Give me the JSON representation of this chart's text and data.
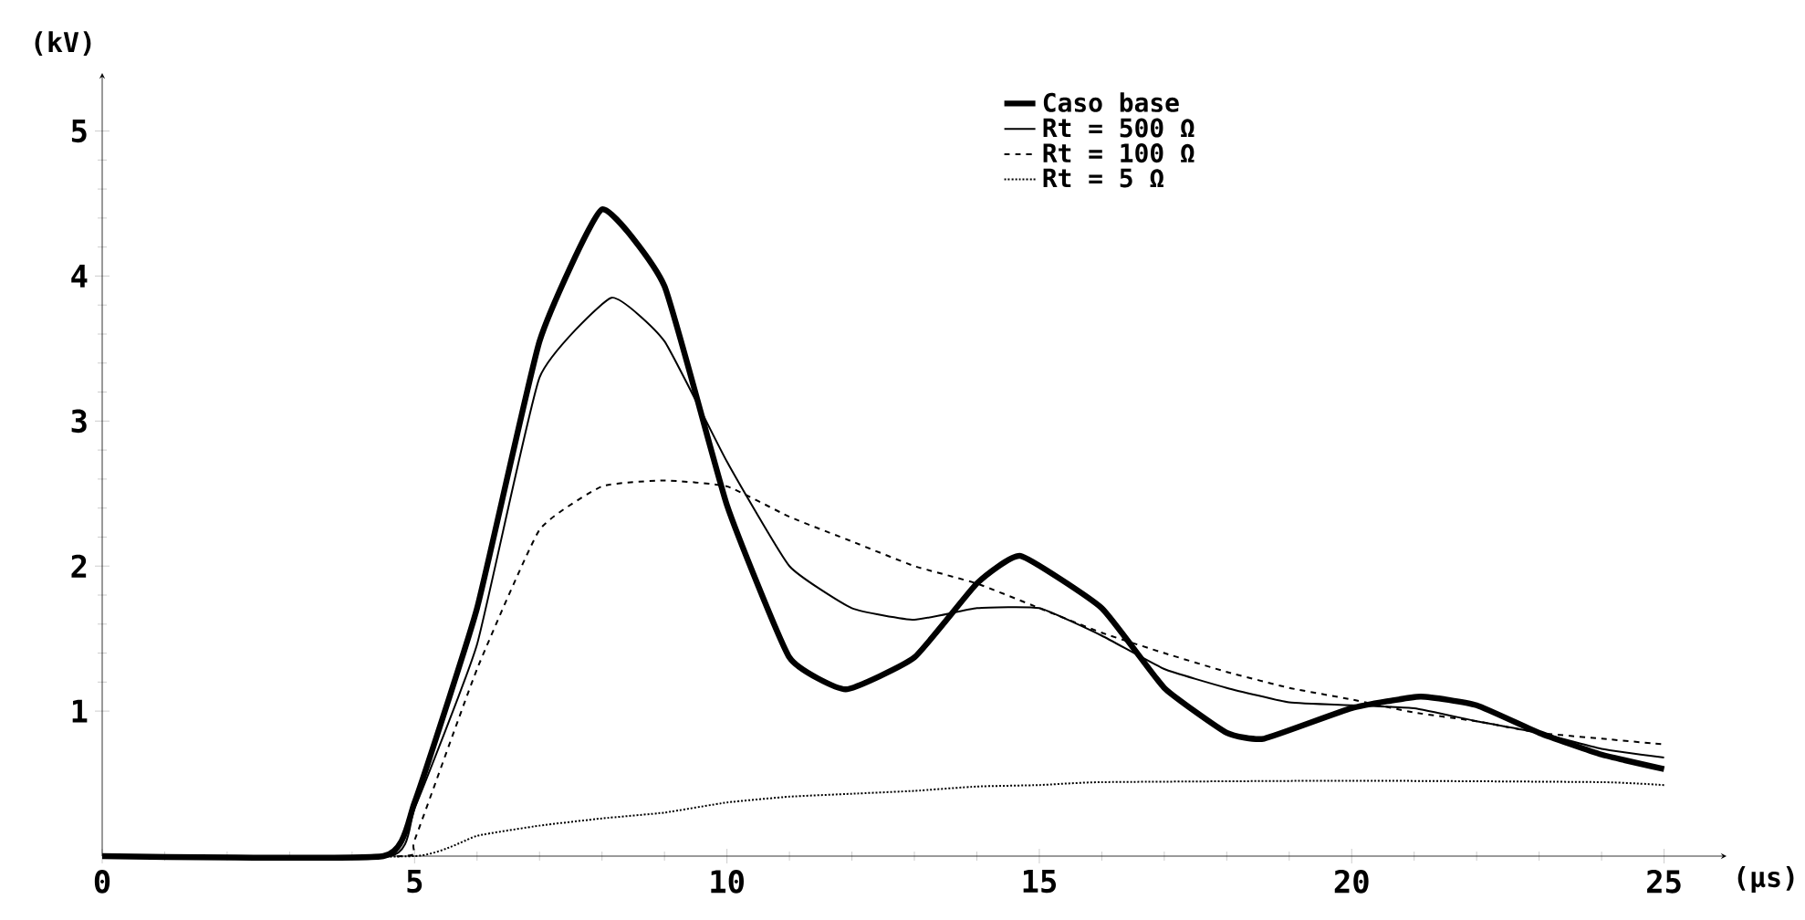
{
  "chart_data": {
    "type": "line",
    "xlabel": "(μs)",
    "ylabel": "(kV)",
    "xlim": [
      0,
      26
    ],
    "ylim": [
      0,
      5.4
    ],
    "xticks": [
      0,
      5,
      10,
      15,
      20,
      25
    ],
    "yticks": [
      1,
      2,
      3,
      4,
      5
    ],
    "legend": "top right",
    "series": [
      {
        "name": "Caso base",
        "color": "#000000",
        "line_style": "solid",
        "x": [
          0,
          4.5,
          5,
          6,
          7,
          8,
          9,
          10,
          11,
          11.9,
          13,
          14,
          14.7,
          16,
          17,
          18,
          18.6,
          20,
          21.1,
          22,
          23,
          24,
          25
        ],
        "values": [
          0,
          0,
          0.37,
          1.71,
          3.55,
          4.46,
          3.93,
          2.42,
          1.37,
          1.15,
          1.37,
          1.88,
          2.07,
          1.71,
          1.16,
          0.85,
          0.81,
          1.02,
          1.1,
          1.04,
          0.85,
          0.7,
          0.6
        ]
      },
      {
        "name": "Rt = 500 Ω",
        "color": "#000000",
        "line_style": "solid",
        "x": [
          0,
          4.6,
          5,
          6,
          7,
          8.15,
          9,
          10,
          11,
          12,
          13,
          14,
          15,
          16,
          17,
          18,
          19,
          20,
          21,
          22,
          23,
          24,
          25
        ],
        "values": [
          0,
          0,
          0.33,
          1.46,
          3.3,
          3.85,
          3.55,
          2.72,
          2.0,
          1.71,
          1.63,
          1.71,
          1.71,
          1.52,
          1.29,
          1.16,
          1.06,
          1.04,
          1.02,
          0.93,
          0.85,
          0.74,
          0.68
        ]
      },
      {
        "name": "Rt = 100 Ω",
        "color": "#000000",
        "line_style": "dashed",
        "x": [
          0,
          4.8,
          5,
          6,
          7,
          8,
          9,
          10,
          11,
          12,
          13,
          14,
          15,
          16,
          17,
          18,
          19,
          20,
          21,
          22,
          23,
          24,
          25
        ],
        "values": [
          0,
          0,
          0.11,
          1.29,
          2.25,
          2.55,
          2.59,
          2.55,
          2.34,
          2.17,
          2.0,
          1.88,
          1.71,
          1.54,
          1.4,
          1.27,
          1.16,
          1.08,
          0.99,
          0.93,
          0.85,
          0.81,
          0.77
        ]
      },
      {
        "name": "Rt = 5 Ω",
        "color": "#000000",
        "line_style": "dotted",
        "x": [
          0,
          5,
          6,
          7,
          8,
          9,
          10,
          11,
          12,
          13,
          14,
          15,
          16,
          20,
          24,
          25
        ],
        "values": [
          0,
          0,
          0.14,
          0.21,
          0.26,
          0.3,
          0.37,
          0.41,
          0.43,
          0.45,
          0.48,
          0.49,
          0.51,
          0.52,
          0.51,
          0.49
        ]
      }
    ]
  }
}
